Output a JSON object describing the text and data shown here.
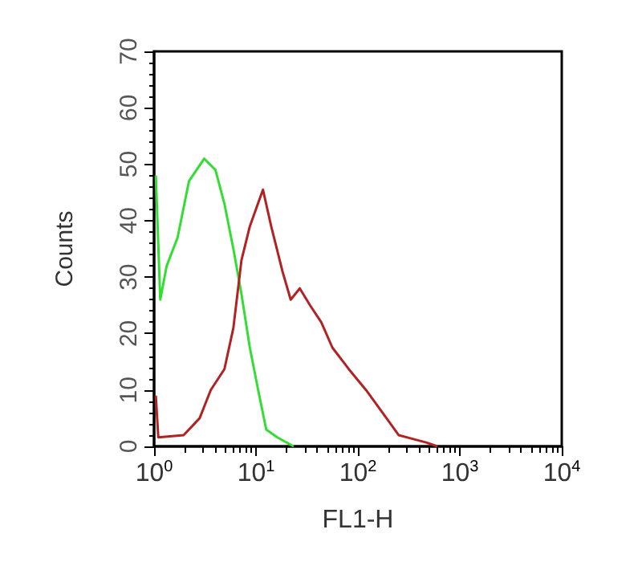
{
  "chart_data": {
    "type": "line",
    "xlabel": "FL1-H",
    "ylabel": "Counts",
    "log": "x",
    "xlim": [
      1,
      10000
    ],
    "ylim": [
      0,
      70
    ],
    "xticks": [
      {
        "value": 1,
        "label": "10$^{0}$"
      },
      {
        "value": 10,
        "label": "10$^{1}$"
      },
      {
        "value": 100,
        "label": "10$^{2}$"
      },
      {
        "value": 1000,
        "label": "10$^{3}$"
      },
      {
        "value": 10000,
        "label": "10$^{4}$"
      }
    ],
    "yticks": [
      0,
      10,
      20,
      30,
      40,
      50,
      60,
      70
    ],
    "grid": false,
    "marker": "none",
    "line_style": "solid",
    "series": [
      {
        "color": "#33dd33",
        "x": [
          1.04,
          1.15,
          1.33,
          1.7,
          2.2,
          3.1,
          4,
          4.9,
          6,
          7.2,
          8.7,
          10.5,
          12.6,
          16.2,
          23.4
        ],
        "values": [
          48,
          26,
          32,
          37,
          47,
          51,
          49,
          43,
          35,
          27,
          17.5,
          10,
          3,
          1.6,
          0
        ]
      },
      {
        "color": "#b22222",
        "x": [
          1.04,
          1.1,
          1.95,
          2.8,
          3.6,
          4.9,
          6,
          7.2,
          8.7,
          11.7,
          14.1,
          18.2,
          21.9,
          26.9,
          33.9,
          43.7,
          56.2,
          81.3,
          120,
          174,
          251,
          468,
          603
        ],
        "values": [
          9,
          1.6,
          2,
          5,
          10,
          13.7,
          21,
          33,
          39,
          45.5,
          39,
          31,
          26,
          28,
          25,
          22,
          17.5,
          13.7,
          10,
          6,
          2,
          0.7,
          0
        ]
      }
    ]
  }
}
